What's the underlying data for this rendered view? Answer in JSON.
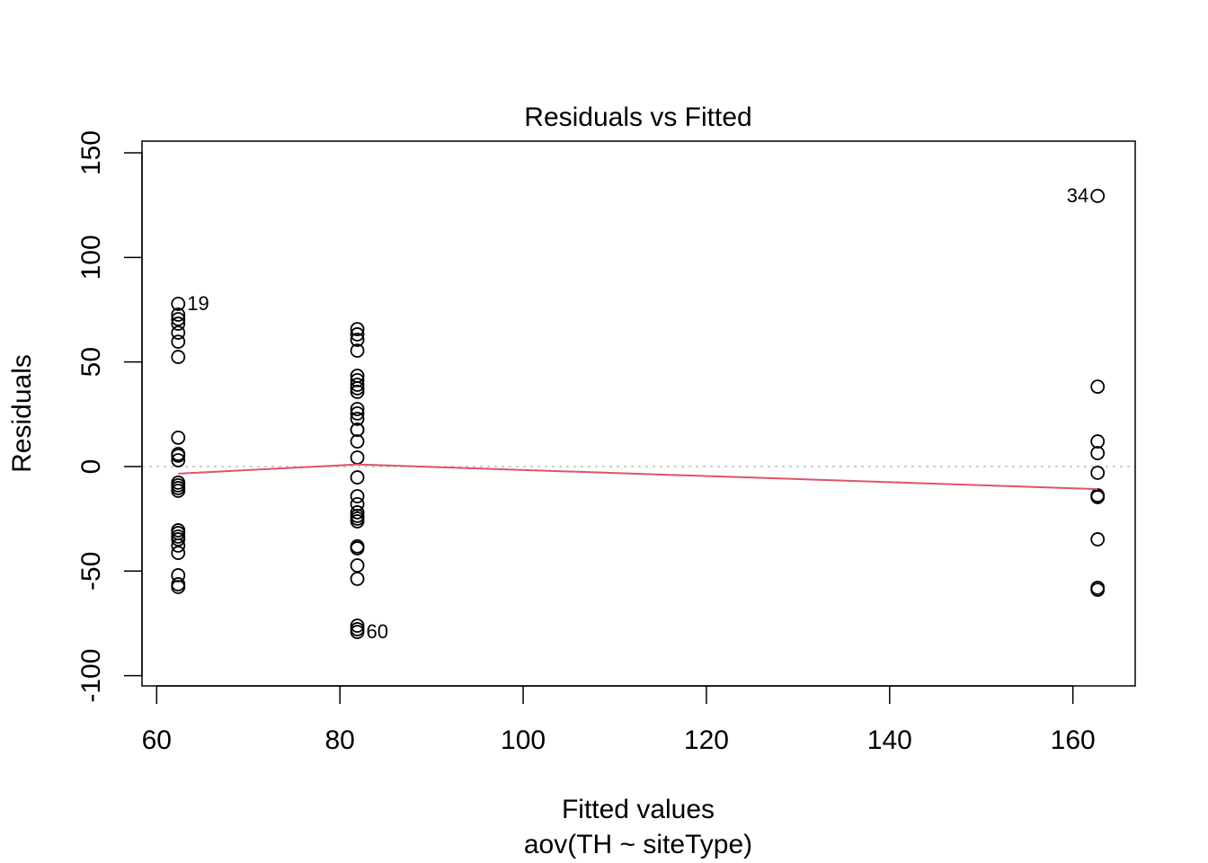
{
  "chart_data": {
    "type": "scatter",
    "title": "Residuals vs Fitted",
    "xlabel": "Fitted values",
    "subtitle": "aov(TH ~ siteType)",
    "ylabel": "Residuals",
    "xlim": [
      58.4,
      166.8
    ],
    "ylim": [
      -104.9,
      155.6
    ],
    "x_ticks": [
      60,
      80,
      100,
      120,
      140,
      160
    ],
    "y_ticks": [
      -100,
      -50,
      0,
      50,
      100,
      150
    ],
    "grid": false,
    "colors": {
      "points": "#000000",
      "smooth": "#DF536B",
      "zero_line": "#BEBEBE"
    },
    "groups": [
      {
        "x": 62.35,
        "residuals": [
          77.8,
          72.6,
          70.5,
          68.3,
          64.0,
          59.7,
          52.4,
          13.8,
          6.0,
          5.2,
          3.0,
          -7.7,
          -9.0,
          -10.3,
          -11.6,
          -30.5,
          -31.8,
          -33.5,
          -34.8,
          -37.8,
          -41.3,
          -52.0,
          -56.3,
          -57.6
        ]
      },
      {
        "x": 81.9,
        "residuals": [
          65.7,
          63.2,
          60.6,
          55.4,
          43.4,
          41.3,
          39.1,
          37.4,
          35.7,
          27.5,
          25.4,
          22.8,
          17.6,
          17.6,
          12.0,
          4.3,
          -5.2,
          -14.2,
          -18.0,
          -21.9,
          -23.6,
          -24.9,
          -26.2,
          -38.2,
          -39.1,
          -47.3,
          -53.7,
          -76.1,
          -77.8,
          -79.1
        ]
      },
      {
        "x": 162.7,
        "residuals": [
          129.4,
          38.2,
          12.0,
          6.4,
          -3.0,
          -13.8,
          -14.6,
          -34.8,
          -58.0,
          -58.9
        ]
      }
    ],
    "smooth_line": {
      "x": [
        62.35,
        81.9,
        162.7
      ],
      "y": [
        -3.4,
        1.0,
        -10.8
      ]
    },
    "labeled_points": [
      {
        "label": "19",
        "x": 62.35,
        "y": 77.8,
        "side": "right"
      },
      {
        "label": "60",
        "x": 81.9,
        "y": -79.1,
        "side": "right"
      },
      {
        "label": "34",
        "x": 162.7,
        "y": 129.4,
        "side": "left"
      }
    ]
  }
}
